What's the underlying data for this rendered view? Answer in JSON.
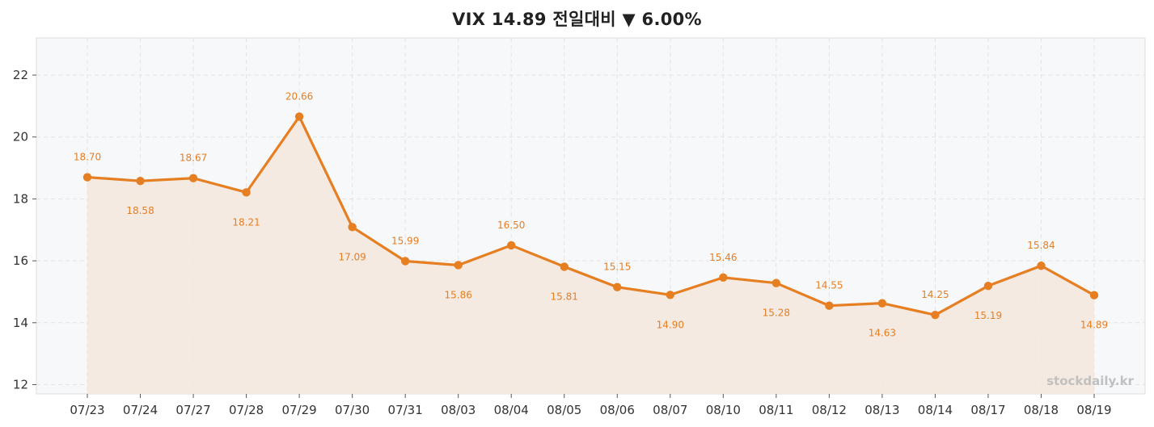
{
  "title": "VIX 14.89 전일대비 ▼ 6.00%",
  "watermark": "stockdaily.kr",
  "colors": {
    "line": "#e67e22",
    "fill": "#f3e7dc",
    "plot_bg": "#f7f8fa",
    "grid": "#e3e3e3"
  },
  "chart_data": {
    "type": "line",
    "title": "VIX 14.89 전일대비 ▼ 6.00%",
    "xlabel": "",
    "ylabel": "",
    "categories": [
      "07/23",
      "07/24",
      "07/27",
      "07/28",
      "07/29",
      "07/30",
      "07/31",
      "08/03",
      "08/04",
      "08/05",
      "08/06",
      "08/07",
      "08/10",
      "08/11",
      "08/12",
      "08/13",
      "08/14",
      "08/17",
      "08/18",
      "08/19"
    ],
    "values": [
      18.7,
      18.58,
      18.67,
      18.21,
      20.66,
      17.09,
      15.99,
      15.86,
      16.5,
      15.81,
      15.15,
      14.9,
      15.46,
      15.28,
      14.55,
      14.63,
      14.25,
      15.19,
      15.84,
      14.89
    ],
    "value_labels": [
      "18.70",
      "18.58",
      "18.67",
      "18.21",
      "20.66",
      "17.09",
      "15.99",
      "15.86",
      "16.50",
      "15.81",
      "15.15",
      "14.90",
      "15.46",
      "15.28",
      "14.55",
      "14.63",
      "14.25",
      "15.19",
      "15.84",
      "14.89"
    ],
    "label_position": [
      "above",
      "below",
      "above",
      "below",
      "above",
      "below",
      "above",
      "below",
      "above",
      "below",
      "above",
      "below",
      "above",
      "below",
      "above",
      "below",
      "above",
      "below",
      "above",
      "below"
    ],
    "yticks": [
      "12",
      "14",
      "16",
      "18",
      "20",
      "22"
    ],
    "ylim": [
      11.7,
      23.2
    ],
    "grid": true,
    "area_fill": true
  }
}
